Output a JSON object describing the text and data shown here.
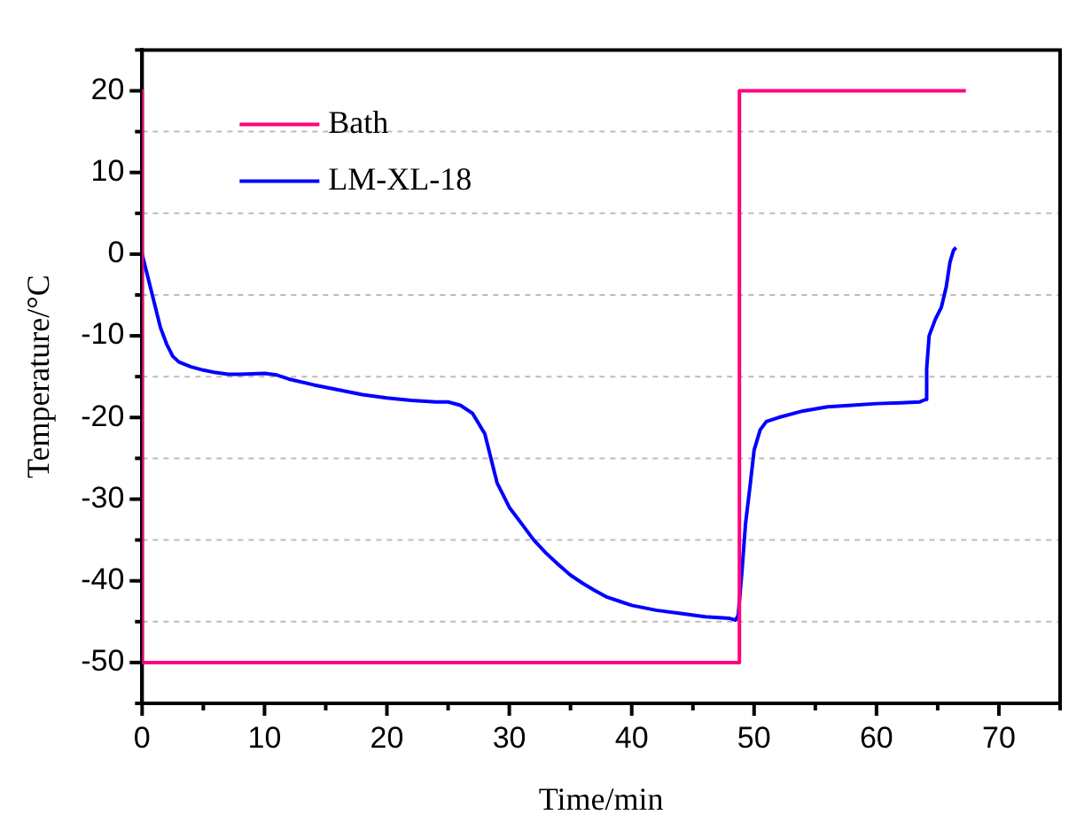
{
  "chart_data": {
    "type": "line",
    "xlabel": "Time/min",
    "ylabel": "Temperature/°C",
    "xlim": [
      0,
      75
    ],
    "ylim": [
      -55,
      25
    ],
    "xticks": [
      0,
      {
        "value": 5,
        "label": null
      },
      10,
      {
        "value": 15,
        "label": null
      },
      20,
      {
        "value": 25,
        "label": null
      },
      30,
      {
        "value": 35,
        "label": null
      },
      40,
      {
        "value": 45,
        "label": null
      },
      50,
      {
        "value": 55,
        "label": null
      },
      60,
      {
        "value": 65,
        "label": null
      },
      70,
      {
        "value": 75,
        "label": null
      }
    ],
    "yticks": [
      {
        "value": -55,
        "label": null
      },
      -50,
      {
        "value": -45,
        "label": null
      },
      -40,
      {
        "value": -35,
        "label": null
      },
      -30,
      {
        "value": -25,
        "label": null
      },
      -20,
      {
        "value": -15,
        "label": null
      },
      -10,
      {
        "value": -5,
        "label": null
      },
      0,
      {
        "value": 5,
        "label": null
      },
      10,
      {
        "value": 15,
        "label": null
      },
      20,
      {
        "value": 25,
        "label": null
      }
    ],
    "grid": "y",
    "legend": "top left",
    "marker": "none",
    "line_style": "solid",
    "series": [
      {
        "name": "Bath",
        "color": "#ff0080",
        "x": [
          0,
          0,
          48.8,
          48.8,
          67.3
        ],
        "values": [
          20,
          -50,
          -50,
          20,
          20
        ]
      },
      {
        "name": "LM-XL-18",
        "color": "#0000ff",
        "x": [
          0,
          0.5,
          1,
          1.5,
          2,
          2.5,
          3,
          4,
          5,
          6,
          7,
          8,
          10,
          11,
          12,
          14,
          16,
          18,
          20,
          22,
          24,
          25,
          26,
          27,
          28,
          28.5,
          29,
          30,
          31,
          32,
          33,
          34,
          35,
          36,
          37,
          38,
          39,
          40,
          42,
          44,
          46,
          48,
          48.5,
          48.7,
          49,
          49.3,
          49.7,
          50,
          50.5,
          51,
          52,
          54,
          56,
          58,
          60,
          62,
          63.5,
          64,
          64.1,
          64.3,
          64.8,
          65.3,
          65.7,
          66,
          66.3,
          66.5
        ],
        "values": [
          0,
          -3,
          -6,
          -9,
          -11,
          -12.5,
          -13.2,
          -13.8,
          -14.2,
          -14.5,
          -14.7,
          -14.7,
          -14.6,
          -14.8,
          -15.3,
          -16,
          -16.6,
          -17.2,
          -17.6,
          -17.9,
          -18.1,
          -18.1,
          -18.5,
          -19.5,
          -22,
          -25,
          -28,
          -31,
          -33,
          -35,
          -36.6,
          -38,
          -39.3,
          -40.3,
          -41.2,
          -42,
          -42.5,
          -43,
          -43.6,
          -44,
          -44.4,
          -44.6,
          -44.8,
          -44.2,
          -39,
          -33,
          -28,
          -24,
          -21.5,
          -20.5,
          -20,
          -19.2,
          -18.7,
          -18.5,
          -18.3,
          -18.2,
          -18.1,
          -17.8,
          -14,
          -10,
          -8,
          -6.5,
          -4,
          -1,
          0.5,
          0.8
        ]
      }
    ]
  }
}
